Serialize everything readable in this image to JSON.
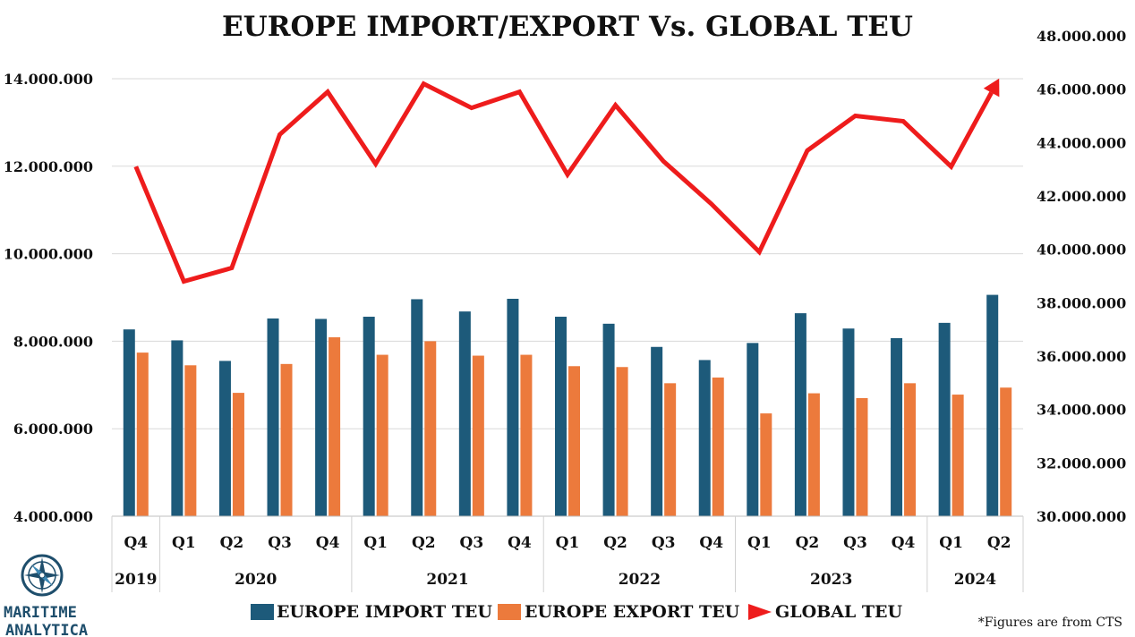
{
  "chart_data": {
    "type": "bar",
    "title": "EUROPE IMPORT/EXPORT Vs. GLOBAL TEU",
    "quarters": [
      "Q4",
      "Q1",
      "Q2",
      "Q3",
      "Q4",
      "Q1",
      "Q2",
      "Q3",
      "Q4",
      "Q1",
      "Q2",
      "Q3",
      "Q4",
      "Q1",
      "Q2",
      "Q3",
      "Q4",
      "Q1",
      "Q2"
    ],
    "years": [
      {
        "label": "2019",
        "count": 1
      },
      {
        "label": "2020",
        "count": 4
      },
      {
        "label": "2021",
        "count": 4
      },
      {
        "label": "2022",
        "count": 4
      },
      {
        "label": "2023",
        "count": 4
      },
      {
        "label": "2024",
        "count": 2
      }
    ],
    "series": [
      {
        "name": "EUROPE IMPORT TEU",
        "type": "bar",
        "axis": "left",
        "color": "#1d5a7a",
        "values": [
          8270000,
          8020000,
          7550000,
          8520000,
          8510000,
          8560000,
          8960000,
          8680000,
          8970000,
          8560000,
          8400000,
          7870000,
          7570000,
          7960000,
          8640000,
          8290000,
          8070000,
          8420000,
          9060000
        ]
      },
      {
        "name": "EUROPE EXPORT TEU",
        "type": "bar",
        "axis": "left",
        "color": "#ec7a3c",
        "values": [
          7740000,
          7450000,
          6820000,
          7480000,
          8090000,
          7690000,
          8000000,
          7670000,
          7690000,
          7430000,
          7410000,
          7040000,
          7170000,
          6350000,
          6810000,
          6700000,
          7040000,
          6780000,
          6940000
        ]
      },
      {
        "name": "GLOBAL TEU",
        "type": "line",
        "axis": "right",
        "color": "#ee1c1c",
        "values": [
          43100000,
          38800000,
          39300000,
          44300000,
          45900000,
          43200000,
          46200000,
          45300000,
          45900000,
          42800000,
          45400000,
          43300000,
          41700000,
          39900000,
          43700000,
          45000000,
          44800000,
          43100000,
          46400000
        ]
      }
    ],
    "y_left": {
      "min": 4000000,
      "max": 14000000,
      "ticks": [
        "4.000.000",
        "6.000.000",
        "8.000.000",
        "10.000.000",
        "12.000.000",
        "14.000.000"
      ]
    },
    "y_right": {
      "min": 30000000,
      "max": 48000000,
      "ticks": [
        "30.000.000",
        "32.000.000",
        "34.000.000",
        "36.000.000",
        "38.000.000",
        "40.000.000",
        "42.000.000",
        "44.000.000",
        "46.000.000",
        "48.000.000"
      ]
    },
    "grid": true,
    "legend": "bottom"
  },
  "logo": {
    "line1": "MARITIME",
    "line2": "ANALYTICA"
  },
  "footnote": "*Figures are from CTS"
}
